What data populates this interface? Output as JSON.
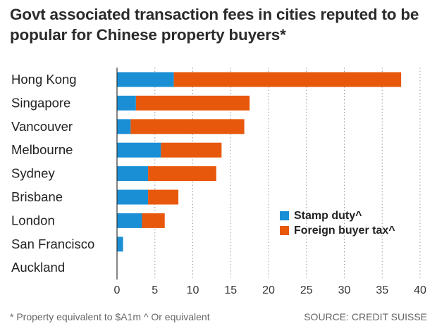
{
  "title": "Govt associated transaction fees in cities reputed to be popular for Chinese property buyers*",
  "footnote": "* Property equivalent to $A1m   ^ Or equivalent",
  "source": "SOURCE: CREDIT SUISSE",
  "chart_data": {
    "type": "bar",
    "orientation": "horizontal",
    "stacked": true,
    "categories": [
      "Hong Kong",
      "Singapore",
      "Vancouver",
      "Melbourne",
      "Sydney",
      "Brisbane",
      "London",
      "San Francisco",
      "Auckland"
    ],
    "series": [
      {
        "name": "Stamp duty^",
        "color": "#1a8fd6",
        "values": [
          7.5,
          2.5,
          1.8,
          5.8,
          4.1,
          4.1,
          3.3,
          0.8,
          0
        ]
      },
      {
        "name": "Foreign buyer tax^",
        "color": "#e8580c",
        "values": [
          30.0,
          15.0,
          15.0,
          8.0,
          9.0,
          4.0,
          3.0,
          0,
          0
        ]
      }
    ],
    "xlim": [
      0,
      40
    ],
    "xticks": [
      0,
      5,
      10,
      15,
      20,
      25,
      30,
      35,
      40
    ],
    "grid": "vertical dotted",
    "legend": "bottom-right"
  }
}
